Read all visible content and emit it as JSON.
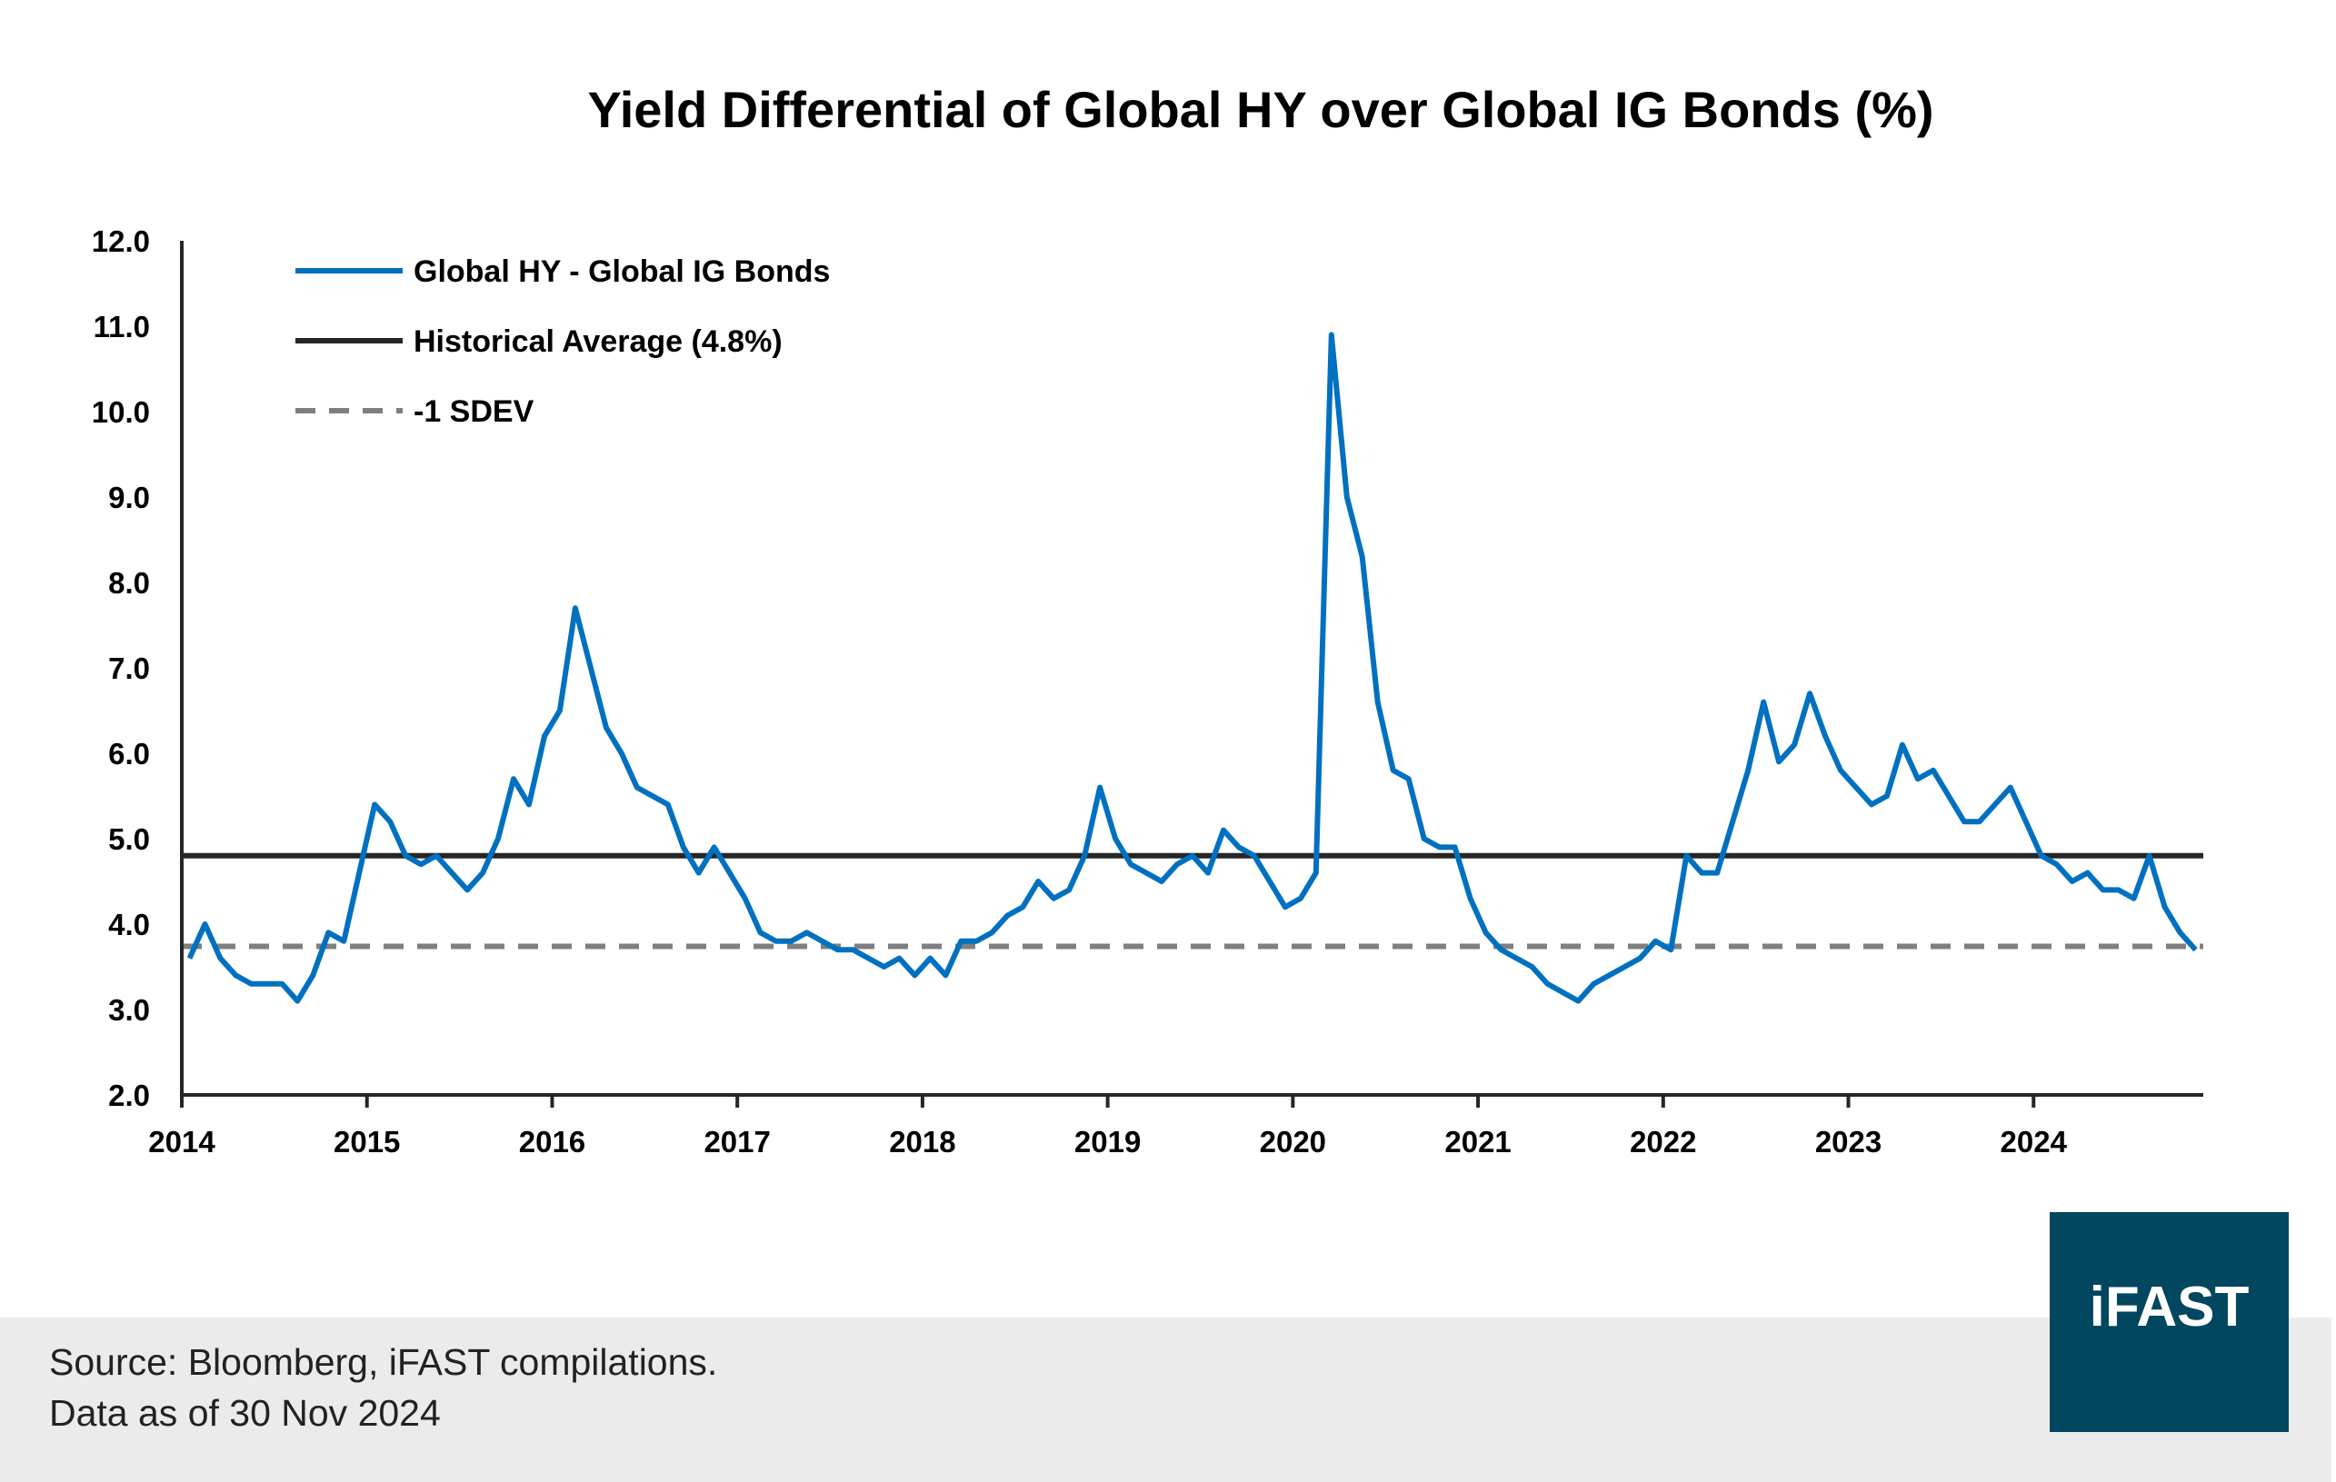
{
  "chart_data": {
    "type": "line",
    "title": "Yield Differential of Global HY over Global IG Bonds (%)",
    "xlabel": "",
    "ylabel": "",
    "ylim": [
      2.0,
      12.0
    ],
    "xlim": [
      "2014-01",
      "2024-11"
    ],
    "yticks": [
      "2.0",
      "3.0",
      "4.0",
      "5.0",
      "6.0",
      "7.0",
      "8.0",
      "9.0",
      "10.0",
      "11.0",
      "12.0"
    ],
    "xticks": [
      "2014",
      "2015",
      "2016",
      "2017",
      "2018",
      "2019",
      "2020",
      "2021",
      "2022",
      "2023",
      "2024"
    ],
    "grid": false,
    "legend_position": "top-left",
    "series": [
      {
        "name": "Global HY - Global IG Bonds",
        "color": "#0070c0",
        "dates": [
          "2014-01",
          "2014-02",
          "2014-03",
          "2014-04",
          "2014-05",
          "2014-06",
          "2014-07",
          "2014-08",
          "2014-09",
          "2014-10",
          "2014-11",
          "2014-12",
          "2015-01",
          "2015-02",
          "2015-03",
          "2015-04",
          "2015-05",
          "2015-06",
          "2015-07",
          "2015-08",
          "2015-09",
          "2015-10",
          "2015-11",
          "2015-12",
          "2016-01",
          "2016-02",
          "2016-03",
          "2016-04",
          "2016-05",
          "2016-06",
          "2016-07",
          "2016-08",
          "2016-09",
          "2016-10",
          "2016-11",
          "2016-12",
          "2017-01",
          "2017-02",
          "2017-03",
          "2017-04",
          "2017-05",
          "2017-06",
          "2017-07",
          "2017-08",
          "2017-09",
          "2017-10",
          "2017-11",
          "2017-12",
          "2018-01",
          "2018-02",
          "2018-03",
          "2018-04",
          "2018-05",
          "2018-06",
          "2018-07",
          "2018-08",
          "2018-09",
          "2018-10",
          "2018-11",
          "2018-12",
          "2019-01",
          "2019-02",
          "2019-03",
          "2019-04",
          "2019-05",
          "2019-06",
          "2019-07",
          "2019-08",
          "2019-09",
          "2019-10",
          "2019-11",
          "2019-12",
          "2020-01",
          "2020-02",
          "2020-03",
          "2020-04",
          "2020-05",
          "2020-06",
          "2020-07",
          "2020-08",
          "2020-09",
          "2020-10",
          "2020-11",
          "2020-12",
          "2021-01",
          "2021-02",
          "2021-03",
          "2021-04",
          "2021-05",
          "2021-06",
          "2021-07",
          "2021-08",
          "2021-09",
          "2021-10",
          "2021-11",
          "2021-12",
          "2022-01",
          "2022-02",
          "2022-03",
          "2022-04",
          "2022-05",
          "2022-06",
          "2022-07",
          "2022-08",
          "2022-09",
          "2022-10",
          "2022-11",
          "2022-12",
          "2023-01",
          "2023-02",
          "2023-03",
          "2023-04",
          "2023-05",
          "2023-06",
          "2023-07",
          "2023-08",
          "2023-09",
          "2023-10",
          "2023-11",
          "2023-12",
          "2024-01",
          "2024-02",
          "2024-03",
          "2024-04",
          "2024-05",
          "2024-06",
          "2024-07",
          "2024-08",
          "2024-09",
          "2024-10",
          "2024-11"
        ],
        "values": [
          3.6,
          4.0,
          3.6,
          3.4,
          3.3,
          3.3,
          3.3,
          3.1,
          3.4,
          3.9,
          3.8,
          4.6,
          5.4,
          5.2,
          4.8,
          4.7,
          4.8,
          4.6,
          4.4,
          4.6,
          5.0,
          5.7,
          5.4,
          6.2,
          6.5,
          7.7,
          7.0,
          6.3,
          6.0,
          5.6,
          5.5,
          5.4,
          4.9,
          4.6,
          4.9,
          4.6,
          4.3,
          3.9,
          3.8,
          3.8,
          3.9,
          3.8,
          3.7,
          3.7,
          3.6,
          3.5,
          3.6,
          3.4,
          3.6,
          3.4,
          3.8,
          3.8,
          3.9,
          4.1,
          4.2,
          4.5,
          4.3,
          4.4,
          4.8,
          5.6,
          5.0,
          4.7,
          4.6,
          4.5,
          4.7,
          4.8,
          4.6,
          5.1,
          4.9,
          4.8,
          4.5,
          4.2,
          4.3,
          4.6,
          10.9,
          9.0,
          8.3,
          6.6,
          5.8,
          5.7,
          5.0,
          4.9,
          4.9,
          4.3,
          3.9,
          3.7,
          3.6,
          3.5,
          3.3,
          3.2,
          3.1,
          3.3,
          3.4,
          3.5,
          3.6,
          3.8,
          3.7,
          4.8,
          4.6,
          4.6,
          5.2,
          5.8,
          6.6,
          5.9,
          6.1,
          6.7,
          6.2,
          5.8,
          5.6,
          5.4,
          5.5,
          6.1,
          5.7,
          5.8,
          5.5,
          5.2,
          5.2,
          5.4,
          5.6,
          5.2,
          4.8,
          4.7,
          4.5,
          4.6,
          4.4,
          4.4,
          4.3,
          4.8,
          4.2,
          3.9,
          3.7
        ]
      },
      {
        "name": "Historical Average (4.8%)",
        "color": "#262626",
        "value": 4.8
      },
      {
        "name": "-1 SDEV",
        "color": "#7f7f7f",
        "value": 3.74
      }
    ]
  },
  "footer": {
    "source": "Source: Bloomberg, iFAST compilations.",
    "date_note": "Data as of 30 Nov 2024"
  },
  "logo": {
    "text": "iFAST",
    "color": "#00475f"
  }
}
